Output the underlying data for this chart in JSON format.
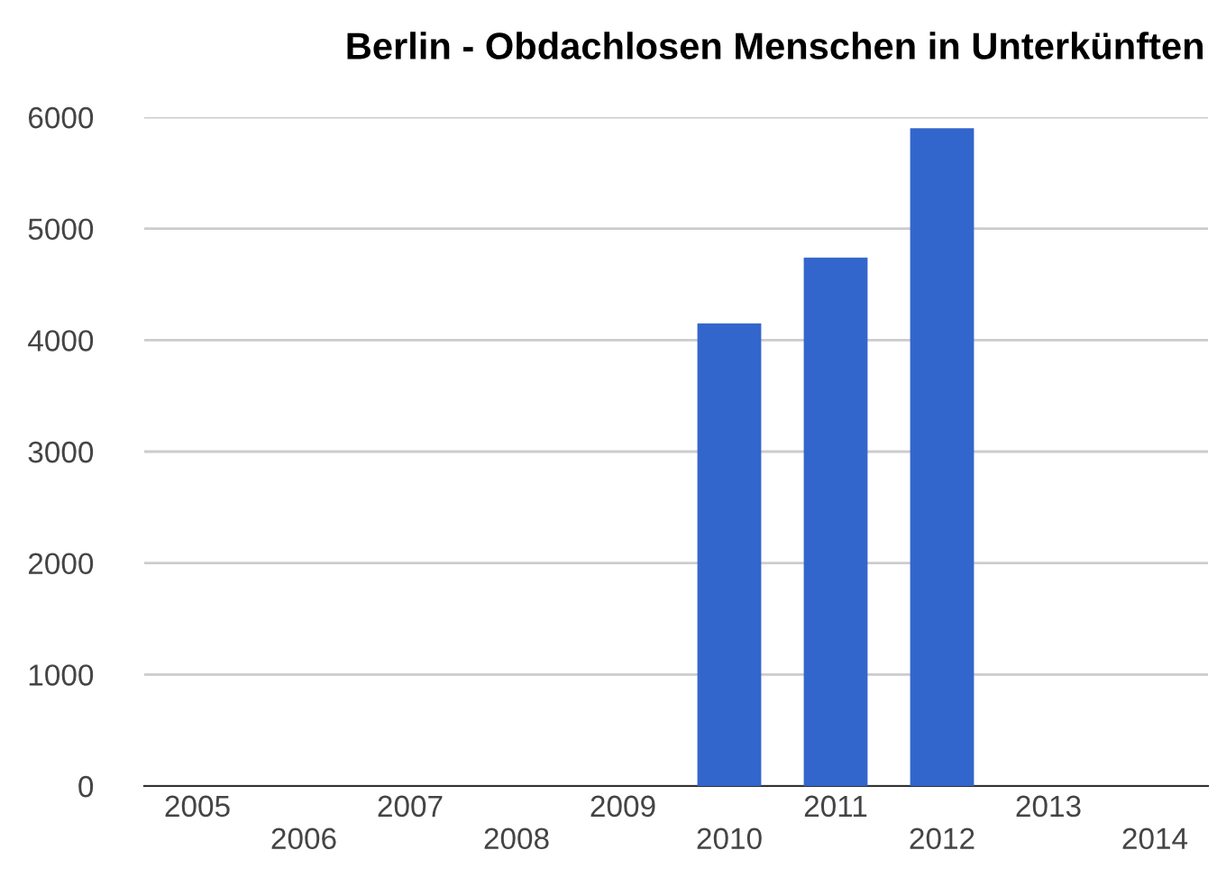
{
  "chart_data": {
    "type": "bar",
    "title": "Berlin - Obdachlosen Menschen in Unterkünften",
    "categories": [
      "2005",
      "2006",
      "2007",
      "2008",
      "2009",
      "2010",
      "2011",
      "2012",
      "2013",
      "2014"
    ],
    "values": [
      null,
      null,
      null,
      null,
      null,
      4150,
      4740,
      5900,
      null,
      null
    ],
    "color": "#3366cc",
    "ylim": [
      0,
      6000
    ],
    "yticks": [
      0,
      1000,
      2000,
      3000,
      4000,
      5000,
      6000
    ],
    "grid": "y",
    "legend": false
  }
}
